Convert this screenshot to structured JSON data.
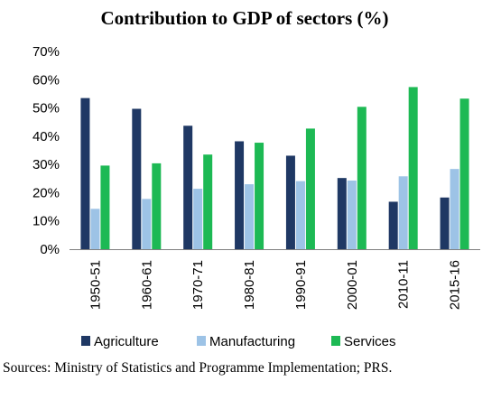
{
  "chart_data": {
    "type": "bar",
    "title": "Contribution to GDP of sectors (%)",
    "categories": [
      "1950-51",
      "1960-61",
      "1970-71",
      "1980-81",
      "1990-91",
      "2000-01",
      "2010-11",
      "2015-16"
    ],
    "series": [
      {
        "name": "Agriculture",
        "color": "#1f3864",
        "values": [
          53.5,
          49.7,
          43.7,
          38.2,
          33.1,
          25.2,
          16.8,
          18.3
        ]
      },
      {
        "name": "Manufacturing",
        "color": "#9dc3e6",
        "values": [
          14.3,
          17.8,
          21.4,
          23.0,
          24.1,
          24.3,
          25.8,
          28.4
        ]
      },
      {
        "name": "Services",
        "color": "#1db954",
        "values": [
          29.6,
          30.4,
          33.5,
          37.7,
          42.7,
          50.4,
          57.4,
          53.3
        ]
      }
    ],
    "yticks": [
      "0%",
      "10%",
      "20%",
      "30%",
      "40%",
      "50%",
      "60%",
      "70%"
    ],
    "ylim": [
      0,
      70
    ],
    "xlabel": "",
    "ylabel": "",
    "grid": false,
    "legend_position": "bottom"
  },
  "source_note": "Sources: Ministry of Statistics and Programme Implementation; PRS."
}
